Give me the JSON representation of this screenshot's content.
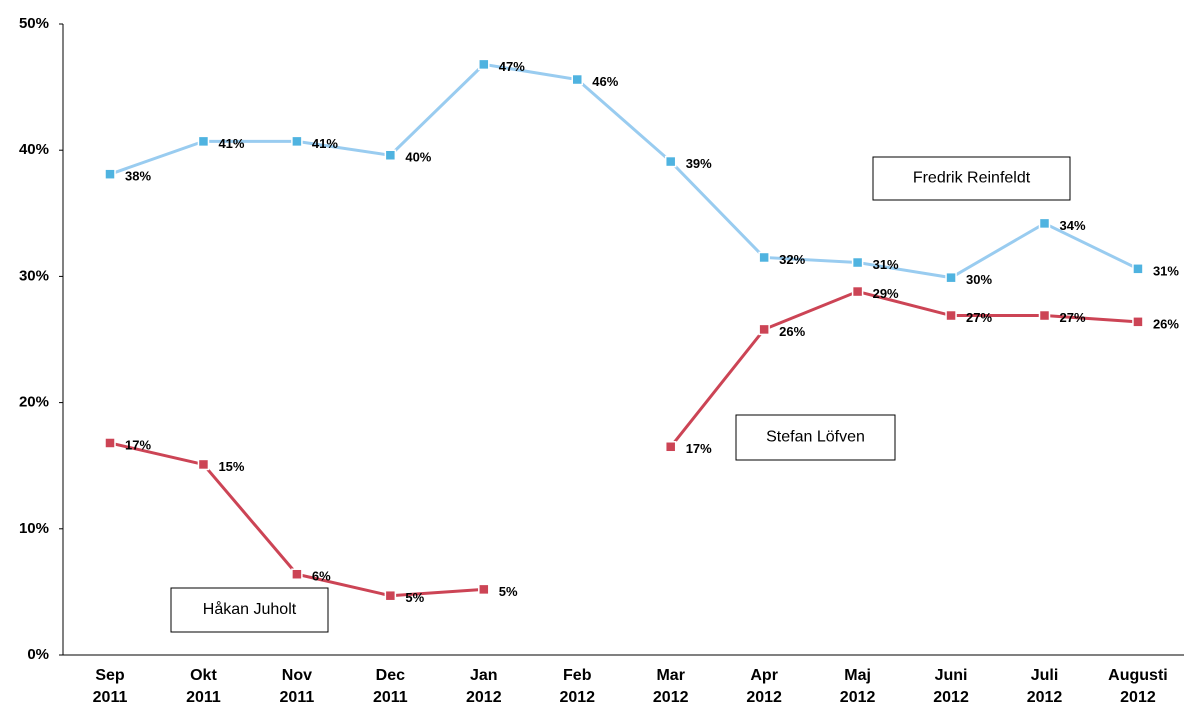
{
  "chart_data": {
    "type": "line",
    "categories": [
      "Sep 2011",
      "Okt 2011",
      "Nov 2011",
      "Dec 2011",
      "Jan 2012",
      "Feb 2012",
      "Mar 2012",
      "Apr 2012",
      "Maj 2012",
      "Juni 2012",
      "Juli 2012",
      "Augusti 2012"
    ],
    "series": [
      {
        "name": "Fredrik Reinfeldt",
        "color": "#99ccf0",
        "marker_color": "#4fb3e0",
        "values": [
          38.1,
          40.7,
          40.7,
          39.6,
          46.8,
          45.6,
          39.1,
          31.5,
          31.1,
          29.9,
          34.2,
          30.6
        ],
        "value_labels": [
          "38%",
          "41%",
          "41%",
          "40%",
          "47%",
          "46%",
          "39%",
          "32%",
          "31%",
          "30%",
          "34%",
          "31%"
        ]
      },
      {
        "name": "Håkan Juholt",
        "color": "#cc4455",
        "marker_color": "#cc4455",
        "values": [
          16.8,
          15.1,
          6.4,
          4.7,
          5.2,
          null,
          null,
          null,
          null,
          null,
          null,
          null
        ],
        "value_labels": [
          "17%",
          "15%",
          "6%",
          "5%",
          "5%",
          null,
          null,
          null,
          null,
          null,
          null,
          null
        ]
      },
      {
        "name": "Stefan Löfven",
        "color": "#cc4455",
        "marker_color": "#cc4455",
        "values": [
          null,
          null,
          null,
          null,
          null,
          null,
          16.5,
          25.8,
          28.8,
          26.9,
          26.9,
          26.4
        ],
        "value_labels": [
          null,
          null,
          null,
          null,
          null,
          null,
          "17%",
          "26%",
          "29%",
          "27%",
          "27%",
          "26%"
        ]
      }
    ],
    "ylim": [
      0,
      50
    ],
    "yticks": [
      {
        "value": 0,
        "label": "0%"
      },
      {
        "value": 10,
        "label": "10%"
      },
      {
        "value": 20,
        "label": "20%"
      },
      {
        "value": 30,
        "label": "30%"
      },
      {
        "value": 40,
        "label": "40%"
      },
      {
        "value": 50,
        "label": "50%"
      }
    ],
    "grid": false
  }
}
